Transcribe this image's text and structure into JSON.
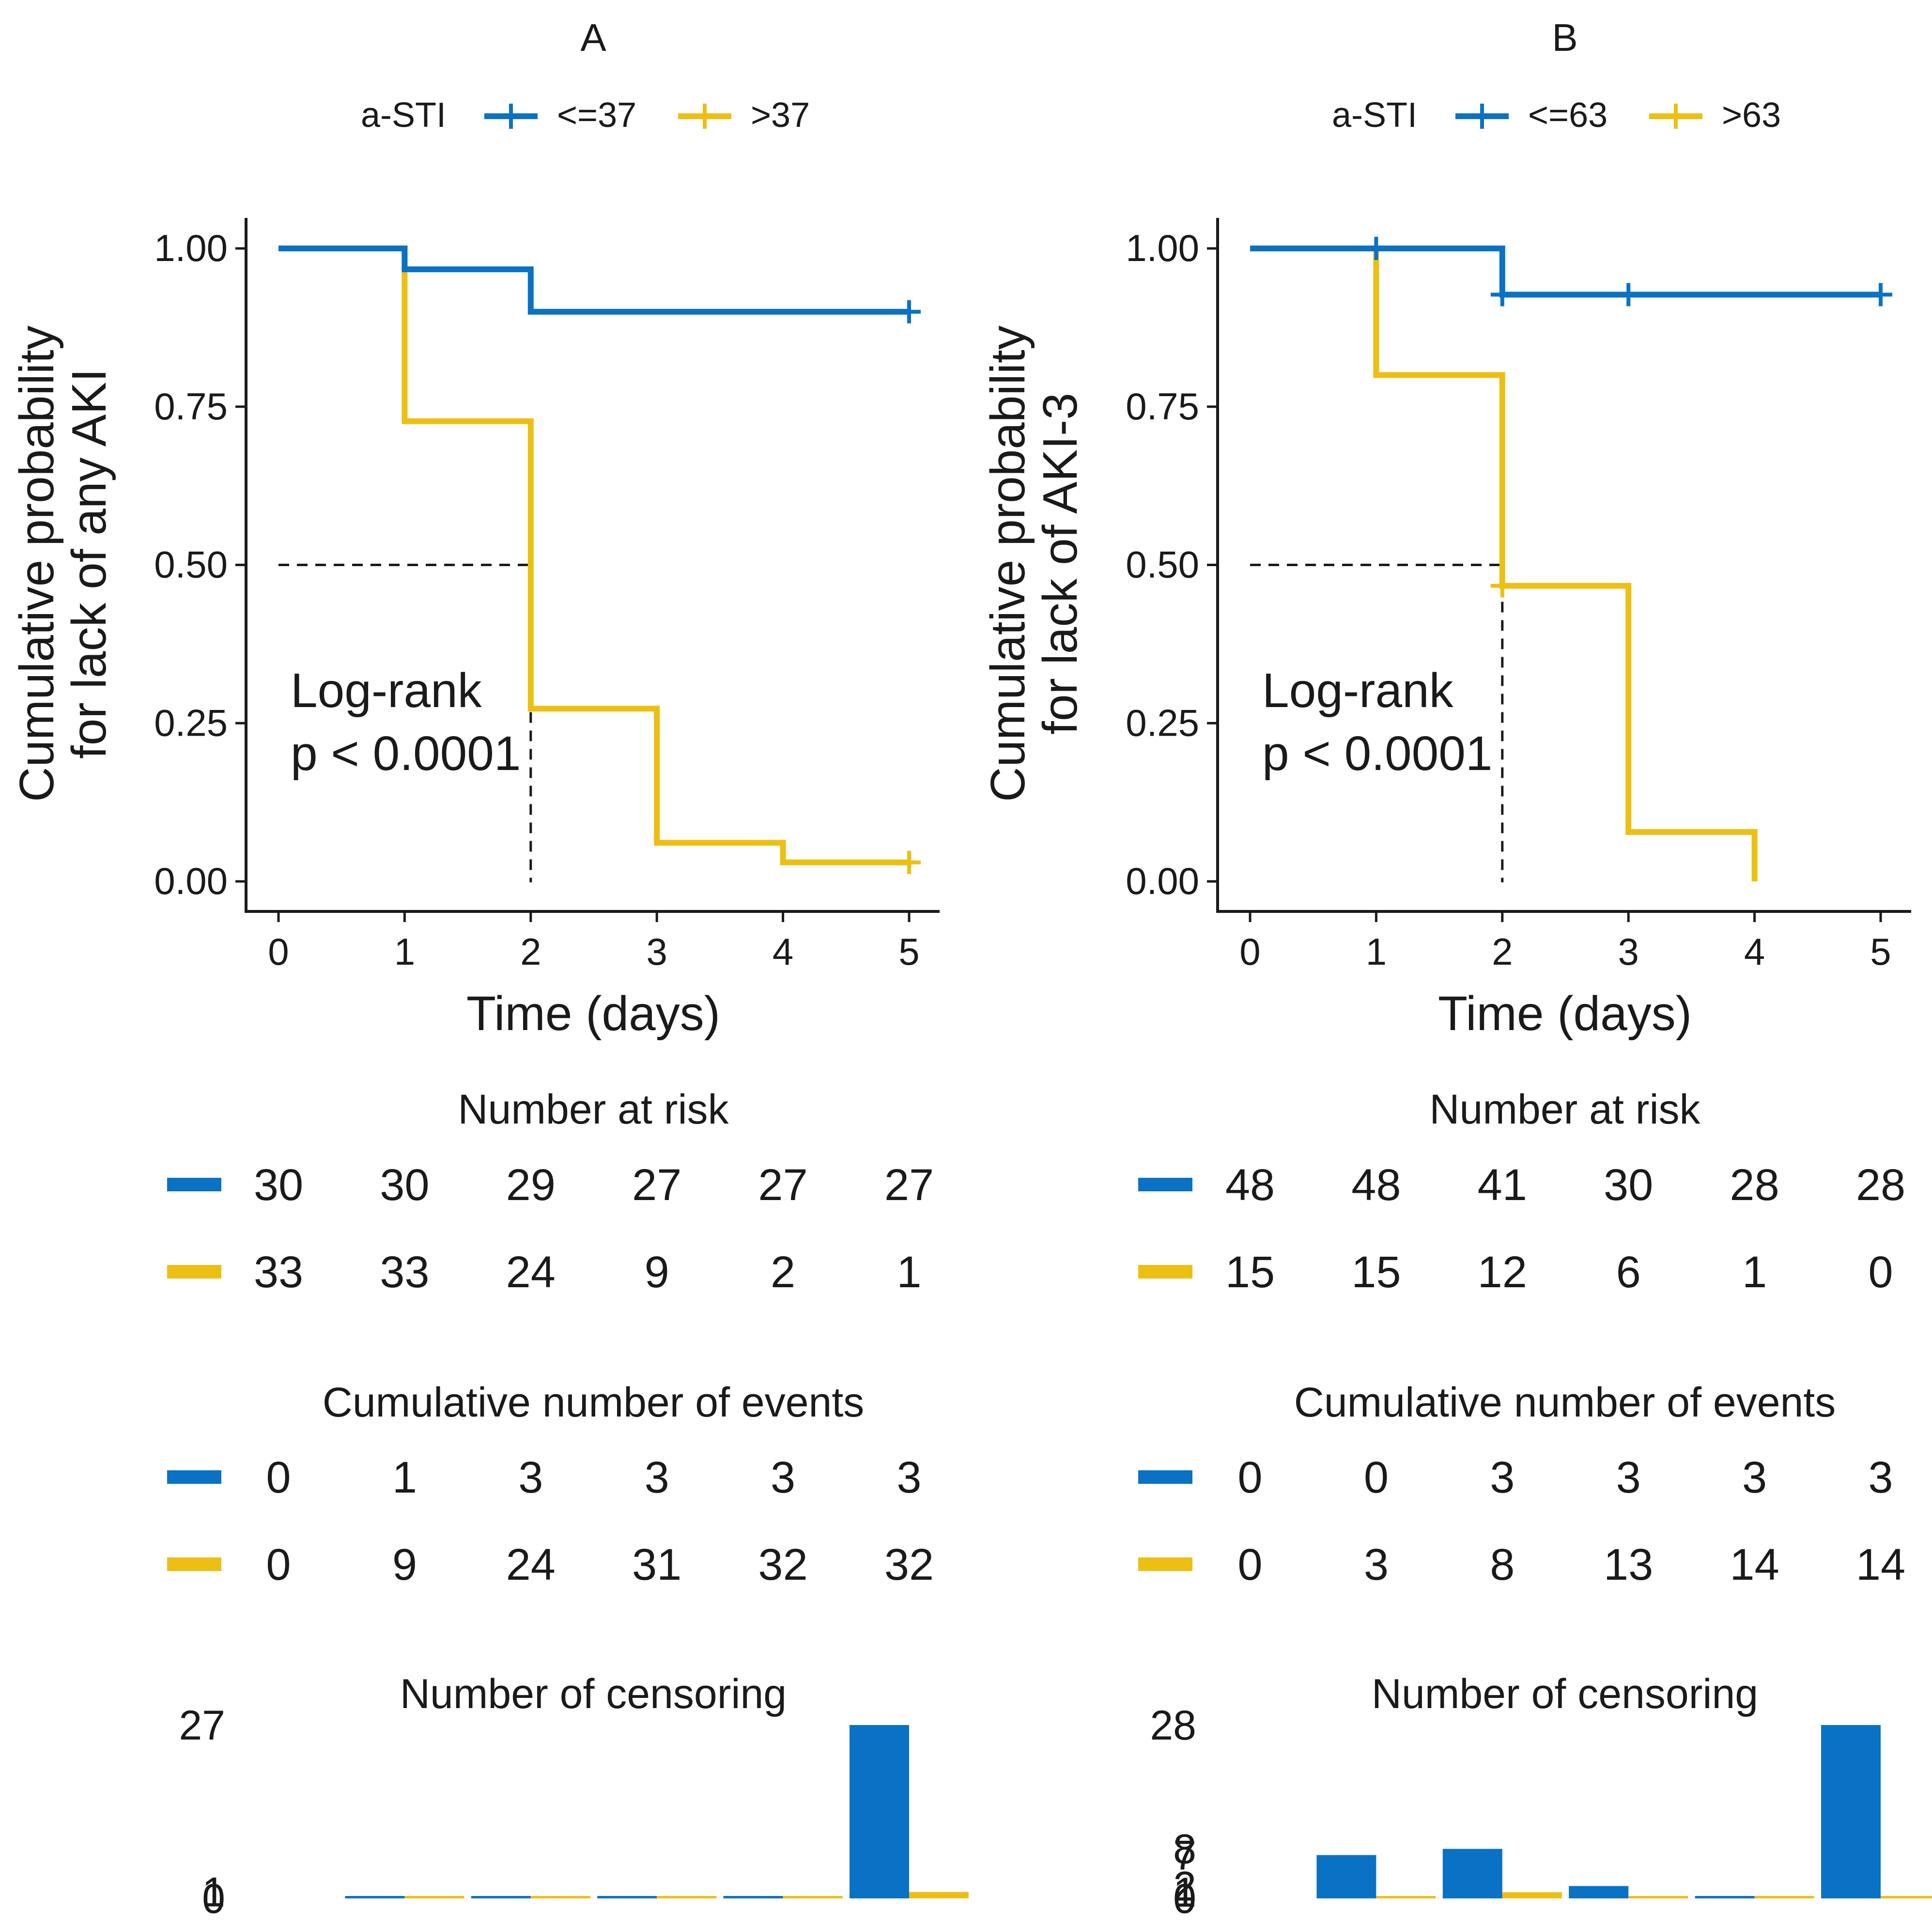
{
  "colors": {
    "low": "#0a72c4",
    "high": "#edbf12",
    "text": "#1a1a1a"
  },
  "chart_data": [
    {
      "type": "line",
      "panel": "A",
      "title": "A",
      "legend_title": "a-STI",
      "series_names": [
        "<=37",
        ">37"
      ],
      "ylabel_lines": [
        "Cumulative probability",
        "for lack of any AKI"
      ],
      "xlabel": "Time (days)",
      "x_ticks": [
        "0",
        "1",
        "2",
        "3",
        "4",
        "5"
      ],
      "y_ticks": [
        "0.00",
        "0.25",
        "0.50",
        "0.75",
        "1.00"
      ],
      "xlim": [
        0,
        5
      ],
      "ylim": [
        0,
        1
      ],
      "annotation_lines": [
        "Log-rank",
        "p < 0.0001"
      ],
      "median_time": 2,
      "series": [
        {
          "name": "<=37",
          "steps": [
            [
              0,
              1.0
            ],
            [
              1,
              0.967
            ],
            [
              2,
              0.9
            ],
            [
              5,
              0.9
            ]
          ],
          "censor": [
            [
              5,
              0.9
            ]
          ]
        },
        {
          "name": ">37",
          "steps": [
            [
              0,
              1.0
            ],
            [
              1,
              0.727
            ],
            [
              2,
              0.273
            ],
            [
              3,
              0.061
            ],
            [
              4,
              0.03
            ],
            [
              5,
              0.03
            ]
          ],
          "censor": [
            [
              5,
              0.03
            ]
          ]
        }
      ],
      "risk_title": "Number at risk",
      "risk": [
        [
          "30",
          "30",
          "29",
          "27",
          "27",
          "27"
        ],
        [
          "33",
          "33",
          "24",
          "9",
          "2",
          "1"
        ]
      ],
      "events_title": "Cumulative number of events",
      "events": [
        [
          "0",
          "1",
          "3",
          "3",
          "3",
          "3"
        ],
        [
          "0",
          "9",
          "24",
          "31",
          "32",
          "32"
        ]
      ],
      "censor_title": "Number of censoring",
      "censor_axis_labels": [
        "27",
        "1",
        "0"
      ],
      "censor_max": 27,
      "censor_counts": [
        [
          0,
          0,
          0,
          0,
          0,
          27
        ],
        [
          0,
          0,
          0,
          0,
          0,
          1
        ]
      ]
    },
    {
      "type": "line",
      "panel": "B",
      "title": "B",
      "legend_title": "a-STI",
      "series_names": [
        "<=63",
        ">63"
      ],
      "ylabel_lines": [
        "Cumulative probability",
        "for lack of AKI-3"
      ],
      "xlabel": "Time (days)",
      "x_ticks": [
        "0",
        "1",
        "2",
        "3",
        "4",
        "5"
      ],
      "y_ticks": [
        "0.00",
        "0.25",
        "0.50",
        "0.75",
        "1.00"
      ],
      "xlim": [
        0,
        5
      ],
      "ylim": [
        0,
        1
      ],
      "annotation_lines": [
        "Log-rank",
        "p < 0.0001"
      ],
      "median_time": 2,
      "series": [
        {
          "name": "<=63",
          "steps": [
            [
              0,
              1.0
            ],
            [
              2,
              0.927
            ],
            [
              5,
              0.927
            ]
          ],
          "censor": [
            [
              1,
              1.0
            ],
            [
              2,
              0.927
            ],
            [
              3,
              0.927
            ],
            [
              5,
              0.927
            ]
          ]
        },
        {
          "name": ">63",
          "steps": [
            [
              0,
              1.0
            ],
            [
              1,
              0.8
            ],
            [
              2,
              0.467
            ],
            [
              3,
              0.078
            ],
            [
              4,
              0.0
            ]
          ],
          "censor": [
            [
              2,
              0.467
            ]
          ]
        }
      ],
      "risk_title": "Number at risk",
      "risk": [
        [
          "48",
          "48",
          "41",
          "30",
          "28",
          "28"
        ],
        [
          "15",
          "15",
          "12",
          "6",
          "1",
          "0"
        ]
      ],
      "events_title": "Cumulative number of events",
      "events": [
        [
          "0",
          "0",
          "3",
          "3",
          "3",
          "3"
        ],
        [
          "0",
          "3",
          "8",
          "13",
          "14",
          "14"
        ]
      ],
      "censor_title": "Number of censoring",
      "censor_axis_labels": [
        "28",
        "8",
        "7",
        "2",
        "1",
        "0"
      ],
      "censor_max": 28,
      "censor_counts": [
        [
          0,
          7,
          8,
          2,
          0,
          28
        ],
        [
          0,
          0,
          1,
          0,
          0,
          0
        ]
      ]
    }
  ]
}
